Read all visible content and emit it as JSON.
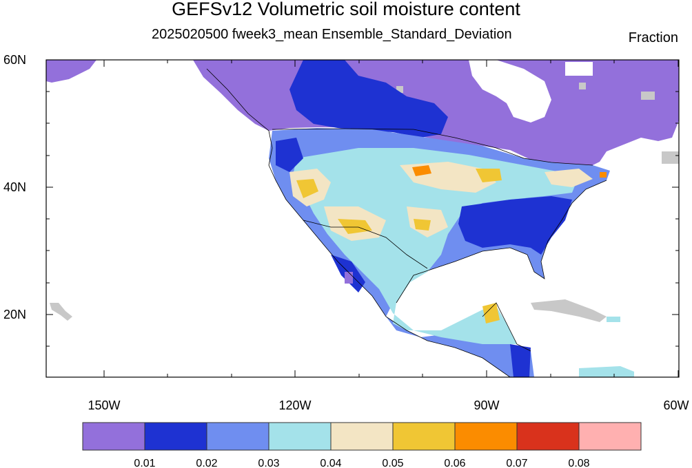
{
  "title": "GEFSv12 Volumetric soil moisture content",
  "subtitle": "2025020500 fweek3_mean Ensemble_Standard_Deviation",
  "units": "Fraction",
  "lat_labels": [
    "60N",
    "40N",
    "20N"
  ],
  "lon_labels": [
    "150W",
    "120W",
    "90W",
    "60W"
  ],
  "colorbar": {
    "colors": [
      "#9370db",
      "#1e32d2",
      "#6f8ef0",
      "#a4e2ea",
      "#f3e5c4",
      "#f0c634",
      "#fb8c00",
      "#d9321c",
      "#ffb0b0"
    ],
    "labels": [
      "0.01",
      "0.02",
      "0.03",
      "0.04",
      "0.05",
      "0.06",
      "0.07",
      "0.08"
    ]
  },
  "colors": {
    "missing": "#c8c8c8",
    "outline": "#000000"
  }
}
